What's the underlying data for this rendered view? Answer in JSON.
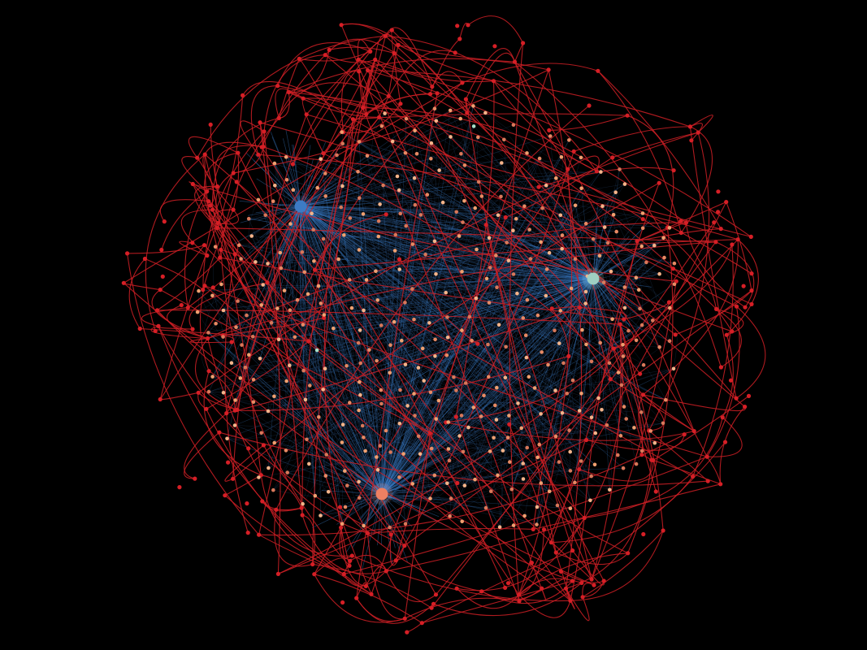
{
  "graph": {
    "background_color": "#000000",
    "hubs": [
      {
        "id": "hub-blue",
        "color": "#3d7bc4"
      },
      {
        "id": "hub-mint",
        "color": "#9fd0c3"
      },
      {
        "id": "hub-coral",
        "color": "#ee8062"
      }
    ],
    "node_colors": {
      "inner": [
        "#f0a070",
        "#e88a64",
        "#f5b48a",
        "#d9785a"
      ],
      "inner_rare": "#a8e0c8",
      "outer": "#d61f26"
    },
    "edge_colors": {
      "hub_fan": "#3f86d6",
      "outer_ring": "#cc1f24",
      "inner_mesh": "#2a4f80"
    }
  }
}
